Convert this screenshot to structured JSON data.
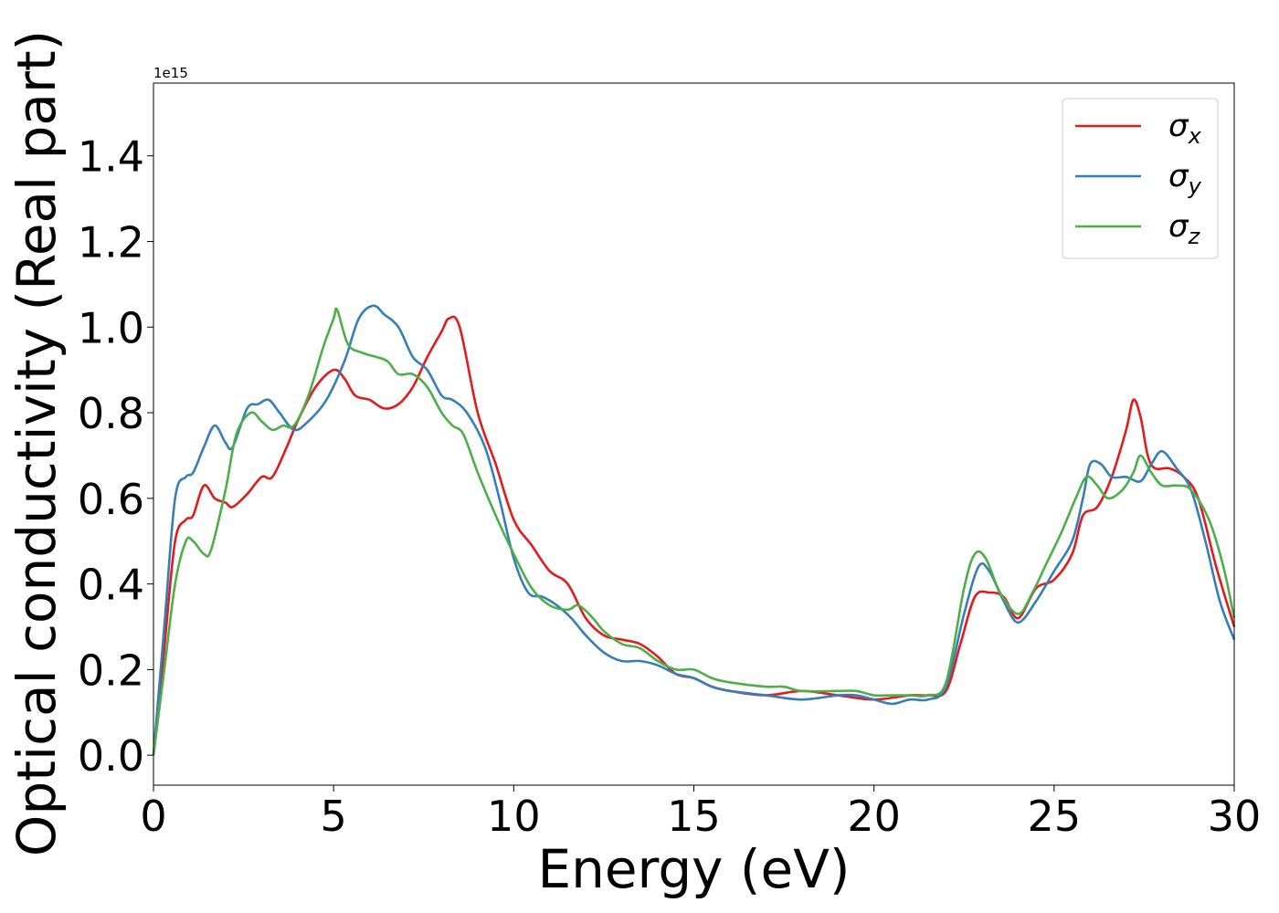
{
  "chart_data": {
    "type": "line",
    "title": "",
    "xlabel": "Energy (eV)",
    "ylabel": "Optical conductivity (Real part)",
    "offset_label": "1e15",
    "xlim": [
      0,
      30
    ],
    "ylim": [
      -0.07,
      1.57
    ],
    "x_ticks": [
      0,
      5,
      10,
      15,
      20,
      25,
      30
    ],
    "x_tick_labels": [
      "0",
      "5",
      "10",
      "15",
      "20",
      "25",
      "30"
    ],
    "y_ticks": [
      0.0,
      0.2,
      0.4,
      0.6,
      0.8,
      1.0,
      1.2,
      1.4
    ],
    "y_tick_labels": [
      "0.0",
      "0.2",
      "0.4",
      "0.6",
      "0.8",
      "1.0",
      "1.2",
      "1.4"
    ],
    "grid": false,
    "legend_position": "top-right",
    "series": [
      {
        "name": "σx",
        "legend_base": "σ",
        "legend_sub": "x",
        "color": "#e41a1c",
        "x": [
          0,
          0.3,
          0.6,
          0.9,
          1.1,
          1.4,
          1.7,
          2.0,
          2.2,
          2.6,
          3.0,
          3.3,
          3.7,
          4.0,
          4.5,
          5.0,
          5.3,
          5.6,
          6.0,
          6.4,
          6.8,
          7.2,
          7.6,
          8.0,
          8.2,
          8.5,
          9.0,
          9.5,
          10.0,
          10.5,
          11.0,
          11.5,
          12.0,
          12.5,
          13.0,
          13.5,
          14.0,
          14.5,
          15.0,
          15.5,
          16.0,
          17.0,
          18.0,
          19.0,
          20.0,
          21.0,
          21.5,
          22.0,
          22.4,
          22.8,
          23.2,
          23.6,
          24.0,
          24.5,
          25.0,
          25.5,
          25.8,
          26.2,
          26.6,
          27.0,
          27.2,
          27.4,
          27.6,
          27.8,
          28.2,
          28.6,
          29.0,
          29.5,
          30.0
        ],
        "y": [
          0.0,
          0.25,
          0.5,
          0.55,
          0.56,
          0.63,
          0.6,
          0.59,
          0.58,
          0.61,
          0.65,
          0.65,
          0.72,
          0.78,
          0.86,
          0.9,
          0.88,
          0.84,
          0.83,
          0.81,
          0.82,
          0.86,
          0.93,
          0.99,
          1.02,
          1.0,
          0.8,
          0.68,
          0.55,
          0.49,
          0.43,
          0.4,
          0.32,
          0.28,
          0.27,
          0.26,
          0.23,
          0.19,
          0.18,
          0.16,
          0.15,
          0.14,
          0.15,
          0.14,
          0.13,
          0.14,
          0.14,
          0.15,
          0.26,
          0.37,
          0.38,
          0.37,
          0.32,
          0.39,
          0.41,
          0.47,
          0.56,
          0.58,
          0.65,
          0.76,
          0.83,
          0.79,
          0.7,
          0.67,
          0.67,
          0.65,
          0.6,
          0.44,
          0.3
        ]
      },
      {
        "name": "σy",
        "legend_base": "σ",
        "legend_sub": "y",
        "color": "#377eb8",
        "x": [
          0,
          0.3,
          0.6,
          0.9,
          1.1,
          1.4,
          1.7,
          2.0,
          2.2,
          2.6,
          2.9,
          3.2,
          3.5,
          3.9,
          4.3,
          4.8,
          5.3,
          5.7,
          6.1,
          6.4,
          6.8,
          7.2,
          7.6,
          8.0,
          8.3,
          8.7,
          9.2,
          9.6,
          10.0,
          10.4,
          10.8,
          11.2,
          11.6,
          12.0,
          12.5,
          13.0,
          13.5,
          14.0,
          14.5,
          15.0,
          15.5,
          16.0,
          17.0,
          18.0,
          19.0,
          19.5,
          20.0,
          20.5,
          21.0,
          21.5,
          22.0,
          22.5,
          22.9,
          23.2,
          23.6,
          24.0,
          24.5,
          25.0,
          25.5,
          25.8,
          26.0,
          26.3,
          26.6,
          27.0,
          27.4,
          27.7,
          28.0,
          28.4,
          28.8,
          29.2,
          29.6,
          30.0
        ],
        "y": [
          0.0,
          0.3,
          0.6,
          0.65,
          0.66,
          0.72,
          0.77,
          0.73,
          0.72,
          0.81,
          0.82,
          0.83,
          0.8,
          0.76,
          0.78,
          0.83,
          0.92,
          1.02,
          1.05,
          1.03,
          1.0,
          0.93,
          0.9,
          0.84,
          0.83,
          0.8,
          0.72,
          0.6,
          0.46,
          0.38,
          0.37,
          0.35,
          0.32,
          0.28,
          0.24,
          0.22,
          0.22,
          0.21,
          0.19,
          0.18,
          0.16,
          0.15,
          0.14,
          0.13,
          0.14,
          0.14,
          0.13,
          0.12,
          0.13,
          0.13,
          0.16,
          0.33,
          0.44,
          0.43,
          0.36,
          0.31,
          0.36,
          0.43,
          0.5,
          0.6,
          0.68,
          0.68,
          0.65,
          0.65,
          0.64,
          0.68,
          0.71,
          0.67,
          0.62,
          0.5,
          0.36,
          0.27
        ]
      },
      {
        "name": "σz",
        "legend_base": "σ",
        "legend_sub": "z",
        "color": "#4daf4a",
        "x": [
          0,
          0.3,
          0.6,
          0.9,
          1.1,
          1.4,
          1.6,
          2.0,
          2.3,
          2.7,
          3.0,
          3.3,
          3.6,
          3.9,
          4.3,
          4.7,
          5.0,
          5.1,
          5.4,
          5.8,
          6.2,
          6.5,
          6.8,
          7.2,
          7.6,
          8.0,
          8.3,
          8.6,
          9.0,
          9.5,
          10.0,
          10.5,
          11.0,
          11.5,
          11.8,
          12.2,
          12.5,
          13.0,
          13.5,
          14.0,
          14.5,
          15.0,
          15.5,
          16.0,
          17.0,
          17.5,
          18.0,
          19.0,
          19.5,
          20.0,
          20.5,
          21.0,
          21.5,
          22.0,
          22.5,
          22.8,
          23.1,
          23.5,
          24.0,
          24.4,
          24.8,
          25.2,
          25.6,
          25.9,
          26.2,
          26.5,
          26.9,
          27.2,
          27.4,
          27.7,
          28.0,
          28.4,
          28.8,
          29.3,
          29.7,
          30.0
        ],
        "y": [
          0.0,
          0.2,
          0.4,
          0.5,
          0.5,
          0.47,
          0.48,
          0.62,
          0.75,
          0.8,
          0.78,
          0.76,
          0.77,
          0.77,
          0.84,
          0.95,
          1.02,
          1.04,
          0.96,
          0.94,
          0.93,
          0.92,
          0.89,
          0.89,
          0.86,
          0.8,
          0.77,
          0.75,
          0.66,
          0.56,
          0.47,
          0.39,
          0.35,
          0.34,
          0.35,
          0.32,
          0.29,
          0.26,
          0.25,
          0.22,
          0.2,
          0.2,
          0.18,
          0.17,
          0.16,
          0.16,
          0.15,
          0.15,
          0.15,
          0.14,
          0.14,
          0.14,
          0.14,
          0.17,
          0.39,
          0.47,
          0.46,
          0.38,
          0.33,
          0.38,
          0.45,
          0.52,
          0.6,
          0.65,
          0.63,
          0.6,
          0.62,
          0.66,
          0.7,
          0.66,
          0.63,
          0.63,
          0.62,
          0.55,
          0.44,
          0.32
        ]
      }
    ]
  }
}
